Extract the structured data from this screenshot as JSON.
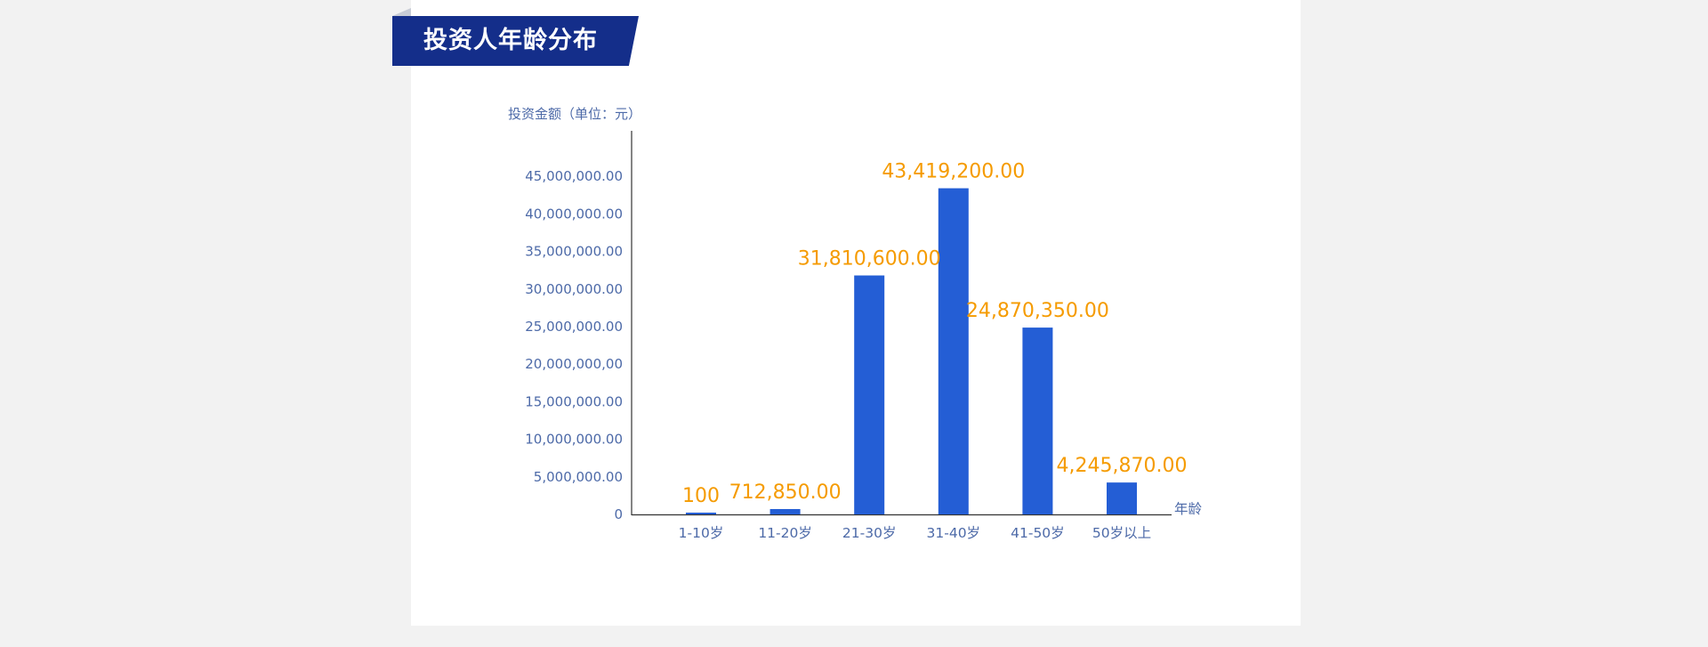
{
  "header": {
    "title": "投资人年龄分布"
  },
  "chart_data": {
    "type": "bar",
    "title": "投资人年龄分布",
    "ylabel": "投资金额（单位：元）",
    "xlabel": "年龄",
    "categories": [
      "1-10岁",
      "11-20岁",
      "21-30岁",
      "31-40岁",
      "41-50岁",
      "50岁以上"
    ],
    "values": [
      100,
      712850.0,
      31810600.0,
      43419200.0,
      24870350.0,
      4245870.0
    ],
    "value_labels": [
      "100",
      "712,850.00",
      "31,810,600.00",
      "43,419,200.00",
      "24,870,350.00",
      "4,245,870.00"
    ],
    "yticks": [
      0,
      5000000,
      10000000,
      15000000,
      20000000,
      25000000,
      30000000,
      35000000,
      40000000,
      45000000
    ],
    "ytick_labels": [
      "0",
      "5,000,000.00",
      "10,000,000.00",
      "15,000,000.00",
      "20,000,000,00",
      "25,000,000.00",
      "30,000,000.00",
      "35,000,000.00",
      "40,000,000.00",
      "45,000,000.00"
    ],
    "ylim": [
      0,
      45000000
    ],
    "grid": false,
    "colors": {
      "bar": "#245ed5",
      "value_label": "#f59b00",
      "axis_text": "#4d6aa8",
      "axis_line": "#333333"
    }
  }
}
